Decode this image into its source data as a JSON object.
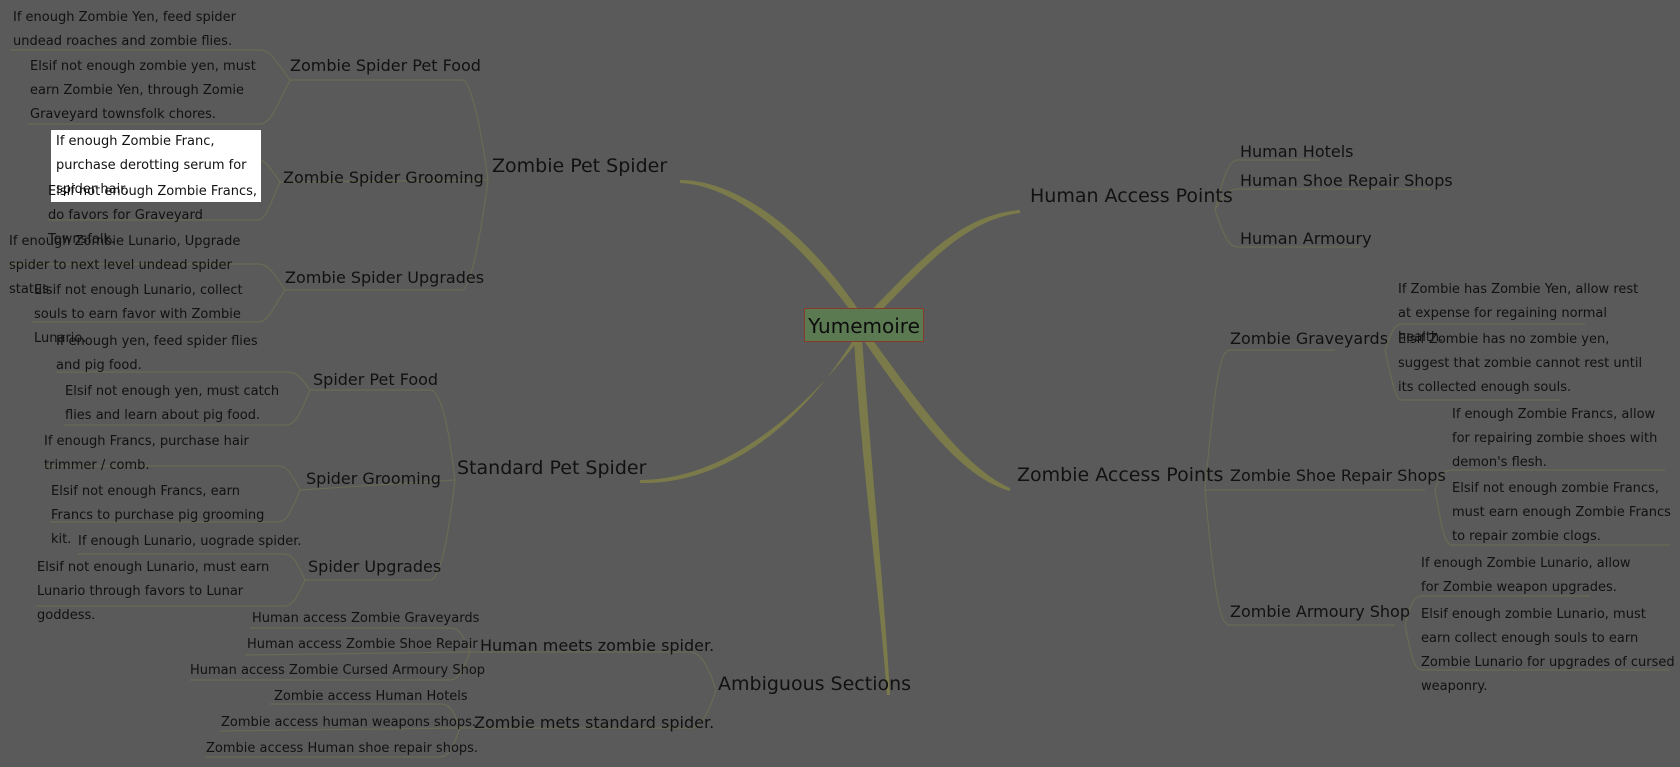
{
  "root": {
    "label": "Yumemoire"
  },
  "branches": {
    "zombie_pet_spider": {
      "label": "Zombie Pet Spider",
      "food": {
        "label": "Zombie Spider Pet Food",
        "notes": [
          "If enough Zombie Yen, feed spider undead roaches and zombie flies.",
          "Elsif not enough zombie yen, must earn Zombie Yen, through Zomie Graveyard townsfolk chores."
        ]
      },
      "grooming": {
        "label": "Zombie Spider Grooming",
        "notes": [
          "If enough Zombie Franc, purchase derotting serum for spider hair.",
          "Elsif not enough Zombie Francs, do favors for Graveyard Townsfolk."
        ]
      },
      "upgrades": {
        "label": "Zombie Spider Upgrades",
        "notes": [
          "If enough Zombie Lunario, Upgrade spider to next level undead spider status.",
          "Elsif not enough Lunario, collect souls to earn favor with Zombie Lunario."
        ]
      }
    },
    "standard_pet_spider": {
      "label": "Standard Pet Spider",
      "food": {
        "label": "Spider Pet Food",
        "notes": [
          "If enough yen, feed spider flies and pig food.",
          "Elsif not enough yen, must catch flies and learn about pig food."
        ]
      },
      "grooming": {
        "label": "Spider Grooming",
        "notes": [
          "If enough Francs, purchase hair trimmer / comb.",
          "Elsif not enough Francs, earn Francs to purchase pig grooming kit."
        ]
      },
      "upgrades": {
        "label": "Spider Upgrades",
        "notes": [
          "If enough Lunario, uograde spider.",
          "Elsif not enough Lunario, must earn Lunario through favors to Lunar goddess."
        ]
      }
    },
    "ambiguous": {
      "label": "Ambiguous Sections",
      "human_meets": {
        "label": "Human meets zombie spider.",
        "items": [
          "Human access Zombie Graveyards",
          "Human access Zombie Shoe Repair",
          "Human access Zombie Cursed Armoury Shop"
        ]
      },
      "zombie_meets": {
        "label": "Zombie mets standard spider.",
        "items": [
          "Zombie access Human Hotels",
          "Zombie access human weapons shops.",
          "Zombie access Human shoe repair shops."
        ]
      }
    },
    "human_access": {
      "label": "Human Access Points",
      "items": [
        "Human Hotels",
        "Human Shoe Repair Shops",
        "Human Armoury"
      ]
    },
    "zombie_access": {
      "label": "Zombie Access Points",
      "graveyards": {
        "label": "Zombie Graveyards",
        "notes": [
          "If Zombie has Zombie Yen, allow rest at expense for regaining normal health.",
          "Elsif Zombie has no zombie yen, suggest that zombie cannot rest until its collected enough souls."
        ]
      },
      "shoe_repair": {
        "label": "Zombie Shoe Repair Shops",
        "notes": [
          "If enough Zombie Francs, allow for repairing zombie shoes with demon's flesh.",
          "Elsif not enough zombie Francs, must earn enough Zombie Francs to repair zombie clogs."
        ]
      },
      "armoury": {
        "label": "Zombie Armoury Shop",
        "notes": [
          "If enough Zombie Lunario, allow for Zombie weapon upgrades.",
          "Elsif enough zombie Lunario, must earn collect enough souls to earn Zombie Lunario for upgrades of cursed weaponry."
        ]
      }
    }
  },
  "colors": {
    "background": "#5a5a5a",
    "root_fill": "#5b7a52",
    "root_border": "#8a3a2a",
    "main_branch": "#7a7a4a",
    "thin_link": "#6a6a55",
    "highlight": "#ffffff"
  }
}
